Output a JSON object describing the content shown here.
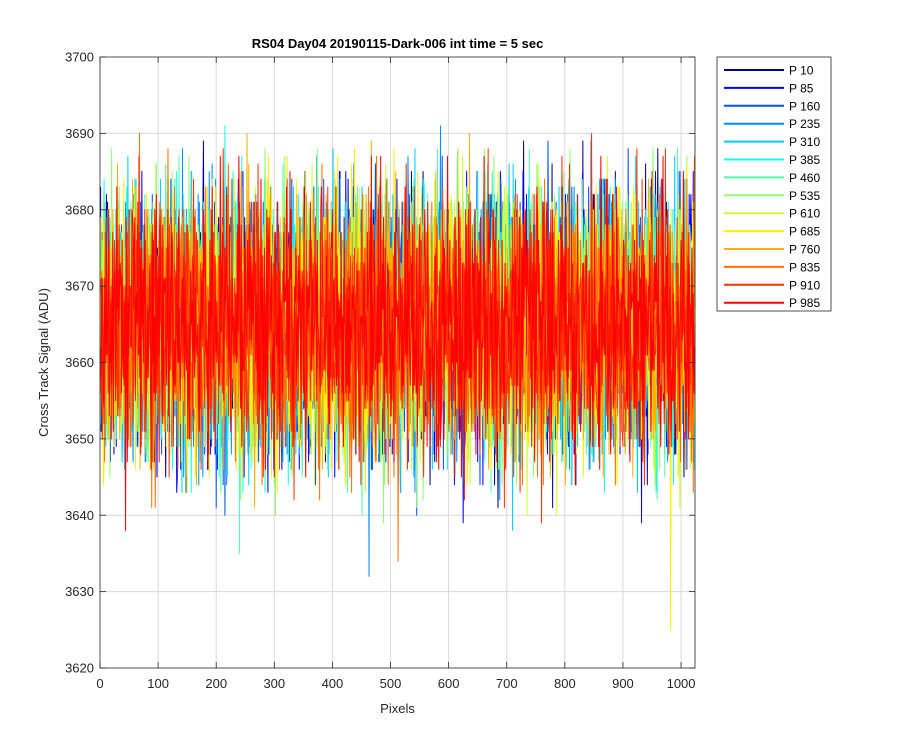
{
  "chart_data": {
    "type": "line",
    "title": "RS04 Day04 20190115-Dark-006 int time = 5 sec",
    "xlabel": "Pixels",
    "ylabel": "Cross Track Signal (ADU)",
    "xlim": [
      0,
      1024
    ],
    "ylim": [
      3620,
      3700
    ],
    "xticks": [
      0,
      100,
      200,
      300,
      400,
      500,
      600,
      700,
      800,
      900,
      1000
    ],
    "yticks": [
      3620,
      3630,
      3640,
      3650,
      3660,
      3670,
      3680,
      3690,
      3700
    ],
    "grid": true,
    "legend_position": "outside-top-right",
    "series": [
      {
        "name": "P 10",
        "color": "#00008f",
        "mean": 3665,
        "std": 8.5,
        "max": 3689,
        "min": 3641
      },
      {
        "name": "P 85",
        "color": "#0000ff",
        "mean": 3665,
        "std": 8.5,
        "max": 3685,
        "min": 3639
      },
      {
        "name": "P 160",
        "color": "#0050ff",
        "mean": 3665,
        "std": 8.5,
        "max": 3689,
        "min": 3640
      },
      {
        "name": "P 235",
        "color": "#008fff",
        "mean": 3665,
        "std": 8.5,
        "max": 3691,
        "min": 3632
      },
      {
        "name": "P 310",
        "color": "#00cfff",
        "mean": 3665,
        "std": 8.5,
        "max": 3688,
        "min": 3638
      },
      {
        "name": "P 385",
        "color": "#10ffef",
        "mean": 3665,
        "std": 8.5,
        "max": 3691,
        "min": 3643
      },
      {
        "name": "P 460",
        "color": "#50ffaf",
        "mean": 3665,
        "std": 8.5,
        "max": 3688,
        "min": 3635
      },
      {
        "name": "P 535",
        "color": "#8fff70",
        "mean": 3665,
        "std": 8.5,
        "max": 3688,
        "min": 3639
      },
      {
        "name": "P 610",
        "color": "#cfff30",
        "mean": 3665,
        "std": 8.5,
        "max": 3687,
        "min": 3640
      },
      {
        "name": "P 685",
        "color": "#ffef00",
        "mean": 3665,
        "std": 8.5,
        "max": 3688,
        "min": 3625
      },
      {
        "name": "P 760",
        "color": "#ffaf00",
        "mean": 3665,
        "std": 8.5,
        "max": 3690,
        "min": 3641
      },
      {
        "name": "P 835",
        "color": "#ff7000",
        "mean": 3665,
        "std": 8.5,
        "max": 3690,
        "min": 3634
      },
      {
        "name": "P 910",
        "color": "#ff3000",
        "mean": 3665,
        "std": 8.5,
        "max": 3690,
        "min": 3639
      },
      {
        "name": "P 985",
        "color": "#ff0000",
        "mean": 3665,
        "std": 8.5,
        "max": 3687,
        "min": 3638
      }
    ]
  }
}
